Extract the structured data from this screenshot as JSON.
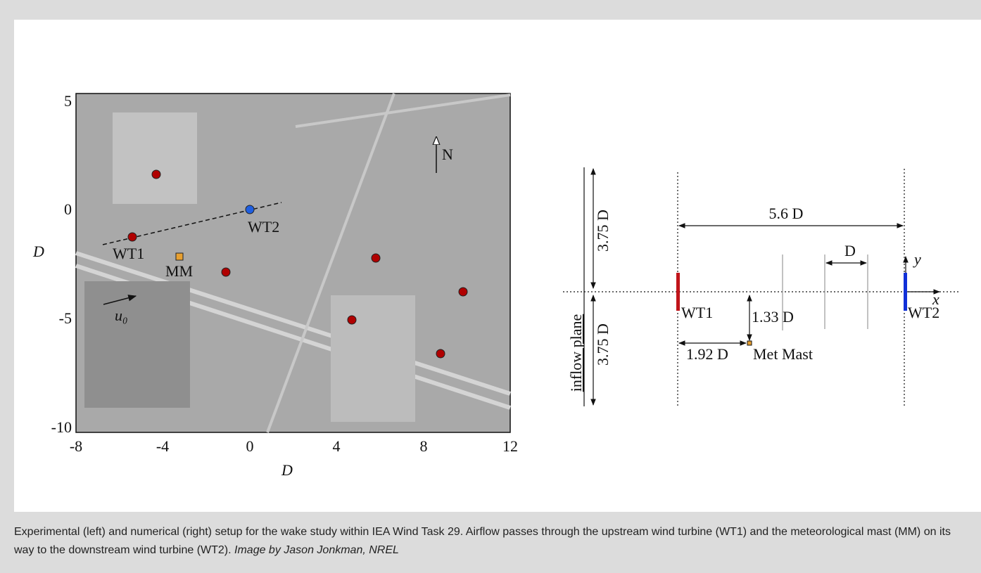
{
  "figure": {
    "left": {
      "y_axis_label": "D",
      "x_axis_label": "D",
      "yticks": [
        "5",
        "0",
        "-5",
        "-10"
      ],
      "xticks": [
        "-8",
        "-4",
        "0",
        "4",
        "8",
        "12"
      ],
      "labels": {
        "wt1": "WT1",
        "wt2": "WT2",
        "mm": "MM",
        "north": "N",
        "u0": "u₀"
      }
    },
    "right": {
      "upper_half": "3.75 D",
      "lower_half": "3.75 D",
      "inflow": "inflow plane",
      "spacing": "5.6 D",
      "d": "D",
      "y": "y",
      "x": "x",
      "wt1": "WT1",
      "wt2": "WT2",
      "mast_y": "1.33 D",
      "mast_x": "1.92 D",
      "mast": "Met Mast"
    }
  },
  "caption": {
    "text": "Experimental (left) and numerical (right) setup for the wake study within IEA Wind Task 29. Airflow passes through the upstream wind turbine (WT1) and the meteorological mast (MM) on its way to the downstream wind turbine (WT2).",
    "credit": "Image by Jason Jonkman, NREL"
  }
}
